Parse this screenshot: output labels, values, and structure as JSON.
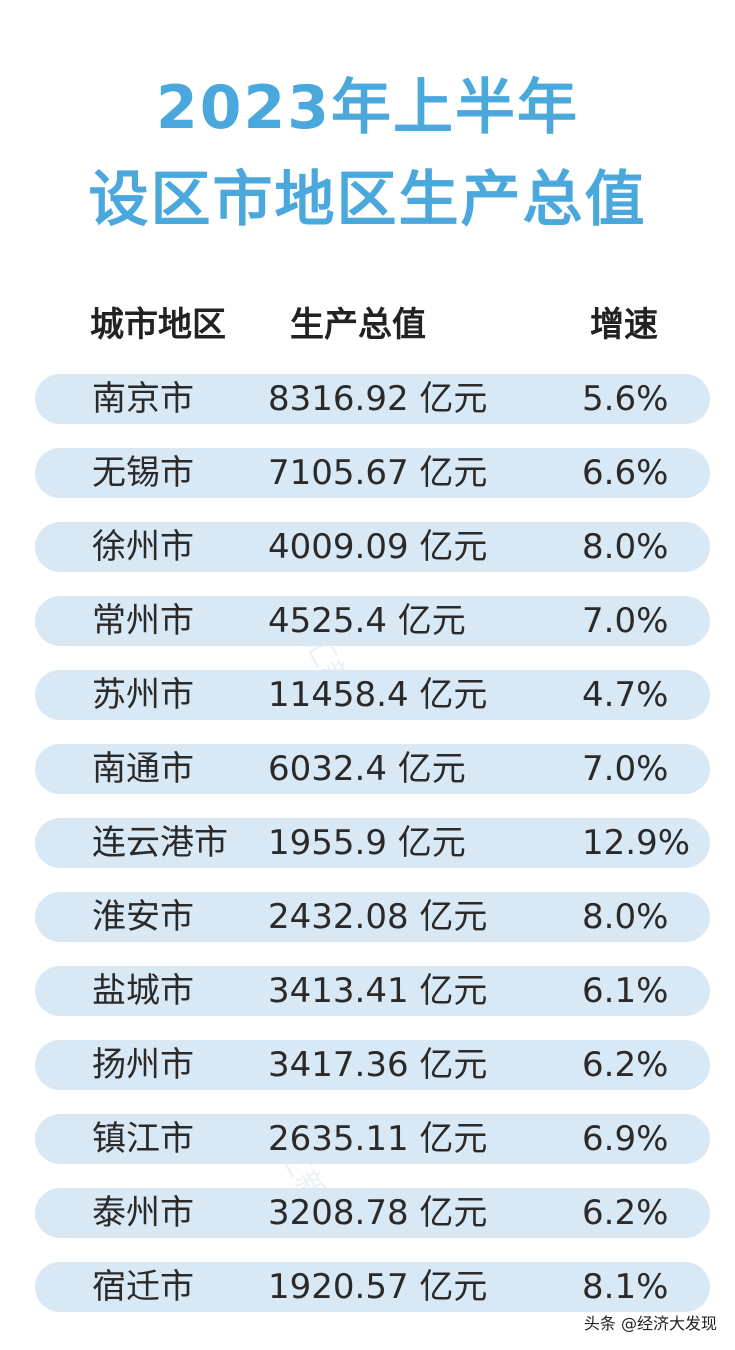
{
  "title": {
    "line1": "2023年上半年",
    "line2": "设区市地区生产总值"
  },
  "headers": {
    "city": "城市地区",
    "gdp": "生产总值",
    "growth": "增速"
  },
  "rows": [
    {
      "city": "南京市",
      "gdp": "8316.92 亿元",
      "growth": "5.6%"
    },
    {
      "city": "无锡市",
      "gdp": "7105.67 亿元",
      "growth": "6.6%"
    },
    {
      "city": "徐州市",
      "gdp": "4009.09 亿元",
      "growth": "8.0%"
    },
    {
      "city": "常州市",
      "gdp": "4525.4  亿元",
      "growth": "7.0%"
    },
    {
      "city": "苏州市",
      "gdp": "11458.4 亿元",
      "growth": "4.7%"
    },
    {
      "city": "南通市",
      "gdp": "6032.4  亿元",
      "growth": "7.0%"
    },
    {
      "city": "连云港市",
      "gdp": "1955.9  亿元",
      "growth": "12.9%"
    },
    {
      "city": "淮安市",
      "gdp": "2432.08 亿元",
      "growth": "8.0%"
    },
    {
      "city": "盐城市",
      "gdp": "3413.41 亿元",
      "growth": "6.1%"
    },
    {
      "city": "扬州市",
      "gdp": "3417.36 亿元",
      "growth": "6.2%"
    },
    {
      "city": "镇江市",
      "gdp": "2635.11 亿元",
      "growth": "6.9%"
    },
    {
      "city": "泰州市",
      "gdp": "3208.78 亿元",
      "growth": "6.2%"
    },
    {
      "city": "宿迁市",
      "gdp": "1920.57 亿元",
      "growth": "8.1%"
    }
  ],
  "watermark": "文汇新闻",
  "footer": "头条 @经济大发现",
  "colors": {
    "title": "#4aa8dc",
    "row_background": "#d8e8f4",
    "text": "#2a2a2a"
  }
}
